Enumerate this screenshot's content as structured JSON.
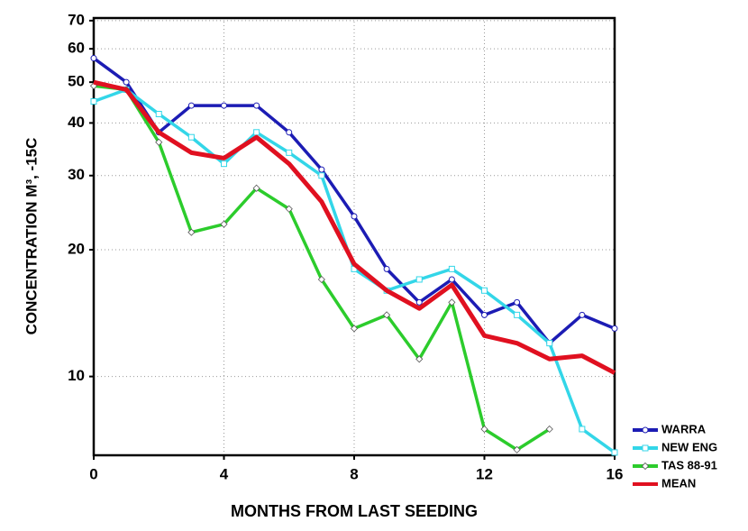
{
  "chart_data": {
    "type": "line",
    "x_label": "MONTHS FROM LAST SEEDING",
    "y_label": "CONCENTRATION M³, -15C",
    "x": [
      0,
      1,
      2,
      3,
      4,
      5,
      6,
      7,
      8,
      9,
      10,
      11,
      12,
      13,
      14,
      15,
      16
    ],
    "xlim": [
      0,
      16
    ],
    "xticks": [
      0,
      4,
      8,
      12,
      16
    ],
    "ylim": [
      6.5,
      71
    ],
    "yticks": [
      10,
      20,
      30,
      40,
      50,
      60,
      70
    ],
    "y_scale": "log",
    "grid": true,
    "legend": "bottom-right",
    "series": [
      {
        "name": "WARRA",
        "color": "#1c1cb4",
        "marker": "circle",
        "values": [
          57,
          50,
          38,
          44,
          44,
          44,
          38,
          31,
          24,
          18,
          15,
          17,
          14,
          15,
          12,
          14,
          13
        ]
      },
      {
        "name": "NEW ENG",
        "color": "#33d6e8",
        "marker": "square",
        "values": [
          45,
          48,
          42,
          37,
          32,
          38,
          34,
          30,
          18,
          16,
          17,
          18,
          16,
          14,
          12,
          7.5,
          6.6
        ]
      },
      {
        "name": "TAS 88-91",
        "color": "#2ccc2c",
        "marker": "diamond",
        "values": [
          49,
          48,
          36,
          22,
          23,
          28,
          25,
          17,
          13,
          14,
          11,
          15,
          7.5,
          6.7,
          7.5,
          null,
          null
        ]
      },
      {
        "name": "MEAN",
        "color": "#e01020",
        "marker": "none",
        "values": [
          50,
          48,
          38,
          34,
          33,
          37,
          32,
          26,
          18.5,
          16,
          14.5,
          16.5,
          12.5,
          12,
          11,
          11.2,
          10.2
        ]
      }
    ]
  }
}
